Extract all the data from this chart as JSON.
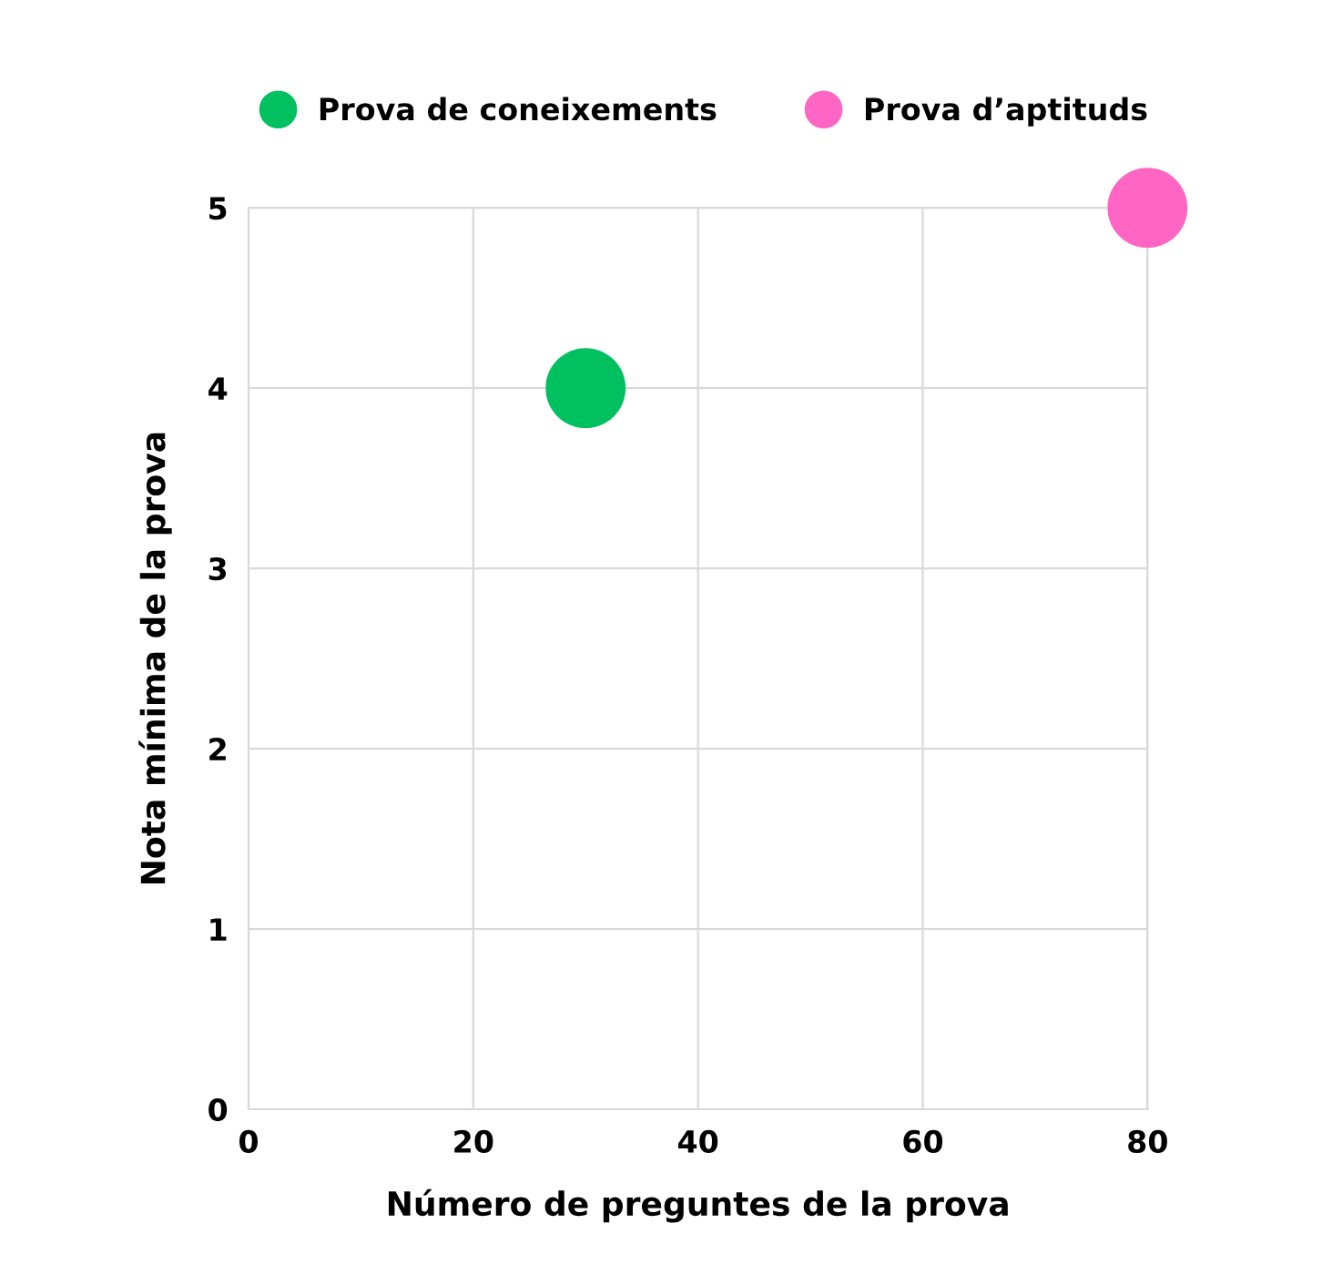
{
  "chart_data": {
    "type": "scatter",
    "xlabel": "Número de preguntes de la prova",
    "ylabel": "Nota mínima de la prova",
    "series": [
      {
        "name": "Prova de coneixements",
        "color": "#00c060",
        "x": [
          30
        ],
        "values": [
          4
        ]
      },
      {
        "name": "Prova d’aptituds",
        "color": "#ff66c4",
        "x": [
          80
        ],
        "values": [
          5
        ]
      }
    ],
    "xlim": [
      0,
      80
    ],
    "xticks": [
      0,
      20,
      40,
      60,
      80
    ],
    "ylim": [
      0,
      5
    ],
    "yticks": [
      0,
      1,
      2,
      3,
      4,
      5
    ],
    "grid": true,
    "legend": "top",
    "marker": "circle"
  }
}
